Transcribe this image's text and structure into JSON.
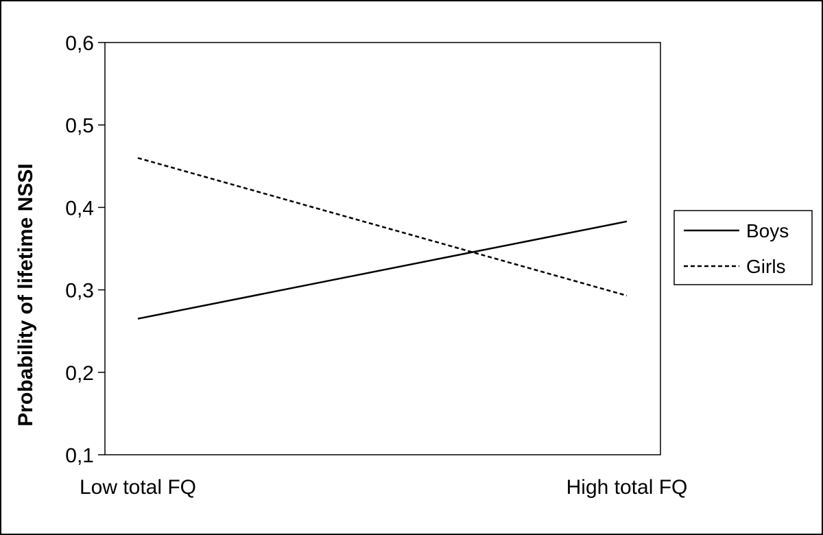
{
  "chart_data": {
    "type": "line",
    "categories": [
      "Low total FQ",
      "High total FQ"
    ],
    "series": [
      {
        "name": "Boys",
        "values": [
          0.265,
          0.383
        ],
        "line_style": "solid",
        "color": "#000000"
      },
      {
        "name": "Girls",
        "values": [
          0.46,
          0.293
        ],
        "line_style": "dashed",
        "color": "#000000"
      }
    ],
    "title": "",
    "xlabel": "",
    "ylabel": "Probability of lifetime NSSI",
    "ylim": [
      0.1,
      0.6
    ],
    "yticks": [
      {
        "value": 0.6,
        "label": "0,6"
      },
      {
        "value": 0.5,
        "label": "0,5"
      },
      {
        "value": 0.4,
        "label": "0,4"
      },
      {
        "value": 0.3,
        "label": "0,3"
      },
      {
        "value": 0.2,
        "label": "0,2"
      },
      {
        "value": 0.1,
        "label": "0,1"
      }
    ],
    "grid": false,
    "legend_position": "right"
  }
}
